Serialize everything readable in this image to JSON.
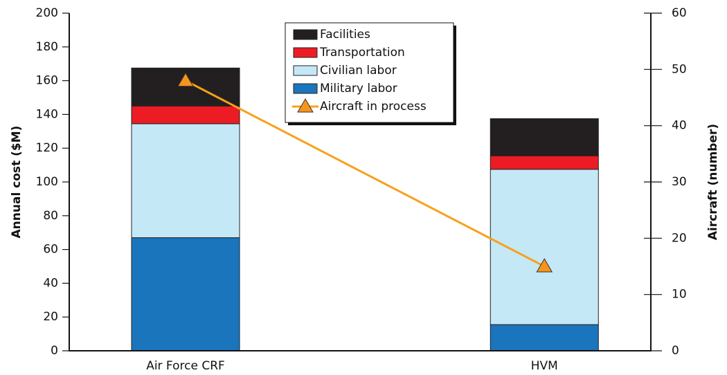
{
  "chart_data": {
    "type": "bar",
    "stacked": true,
    "y_label": "Annual cost ($M)",
    "y2_label": "Aircraft (number)",
    "categories": [
      "Air Force CRF",
      "HVM"
    ],
    "series": [
      {
        "name": "Military labor",
        "color": "#1b75bc",
        "values": [
          67,
          15.5
        ]
      },
      {
        "name": "Civilian labor",
        "color": "#c5e8f7",
        "values": [
          67.5,
          92
        ]
      },
      {
        "name": "Transportation",
        "color": "#ed1c24",
        "values": [
          10.5,
          8
        ]
      },
      {
        "name": "Facilities",
        "color": "#231f20",
        "values": [
          22.5,
          22
        ]
      },
      {
        "name": "Aircraft in process",
        "color": "#f7a11a",
        "type": "line",
        "axis": "y2",
        "values": [
          48,
          15
        ]
      }
    ],
    "ylim": [
      0,
      200
    ],
    "yticks": [
      0,
      20,
      40,
      60,
      80,
      100,
      120,
      140,
      160,
      180,
      200
    ],
    "y2lim": [
      0,
      60
    ],
    "y2ticks": [
      0,
      10,
      20,
      30,
      40,
      50,
      60
    ]
  }
}
